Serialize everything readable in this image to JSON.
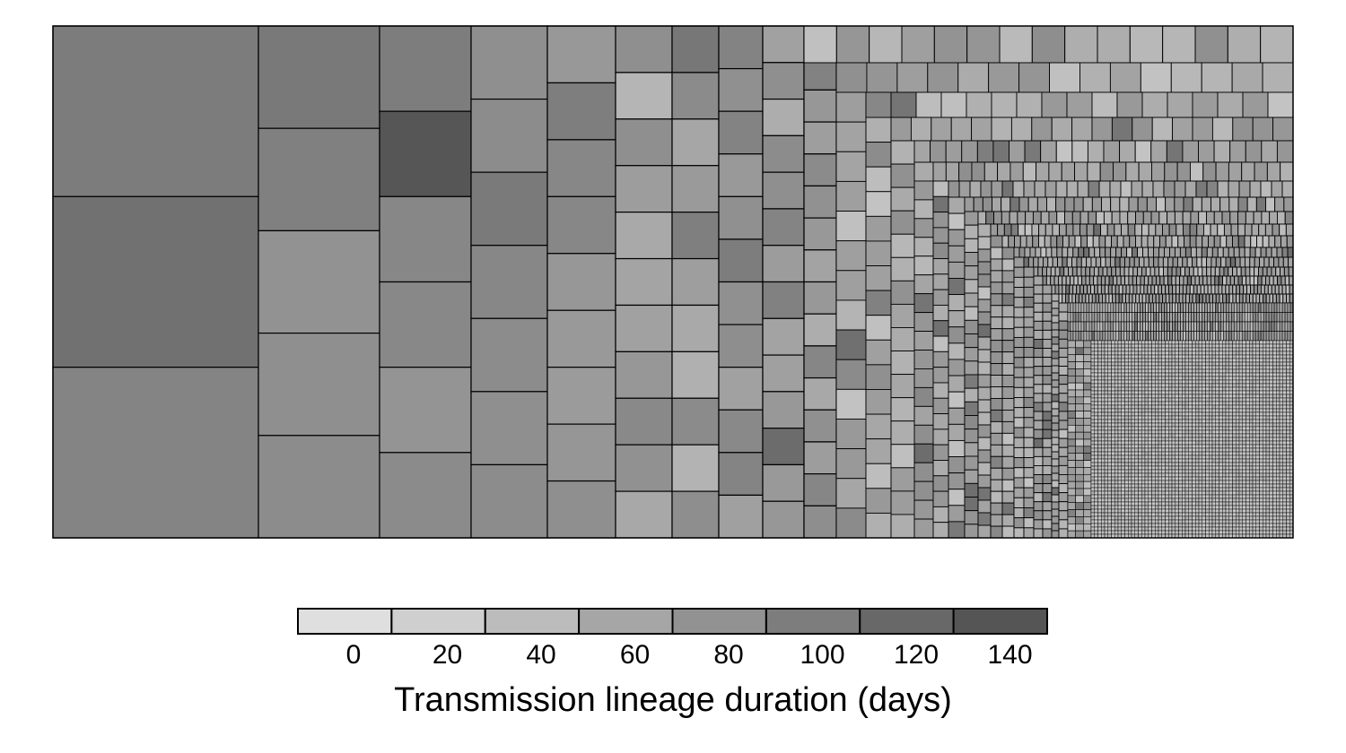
{
  "chart_data": {
    "type": "heatmap",
    "subtype": "treemap",
    "title": "",
    "legend": {
      "label": "Transmission lineage duration (days)",
      "ticks": [
        "0",
        "20",
        "40",
        "60",
        "80",
        "100",
        "120",
        "140"
      ],
      "colors": [
        "#dfdfdf",
        "#cfcfcf",
        "#bcbcbc",
        "#a6a6a6",
        "#929292",
        "#7d7d7d",
        "#686868",
        "#555555"
      ],
      "placement": "bottom"
    },
    "columns": [
      {
        "durations": [
          101,
          113,
          92
        ]
      },
      {
        "durations": [
          104,
          96,
          76,
          79,
          83
        ]
      },
      {
        "durations": [
          100,
          143,
          88,
          87,
          74,
          84
        ]
      },
      {
        "durations": [
          79,
          83,
          103,
          88,
          83,
          80,
          83
        ]
      },
      {
        "durations": [
          70,
          98,
          89,
          89,
          71,
          68,
          66,
          72,
          80
        ]
      },
      {
        "durations": [
          80,
          37,
          80,
          64,
          50,
          56,
          59,
          71,
          86,
          77,
          52
        ]
      },
      {
        "durations": [
          106,
          84,
          54,
          67,
          97,
          63,
          50,
          43,
          84,
          39,
          81
        ]
      },
      {
        "durations": [
          93,
          78,
          93,
          68,
          78,
          100,
          78,
          81,
          59,
          86,
          92,
          61
        ]
      },
      {
        "durations": [
          59,
          80,
          46,
          83,
          80,
          92,
          65,
          95,
          57,
          60,
          69,
          119,
          68,
          71
        ]
      },
      {
        "durations": [
          62,
          94,
          71,
          63,
          84,
          77,
          69,
          57,
          69,
          46,
          90,
          52,
          78,
          64,
          90,
          81
        ]
      }
    ],
    "small_tile_count_estimate": 4500
  }
}
